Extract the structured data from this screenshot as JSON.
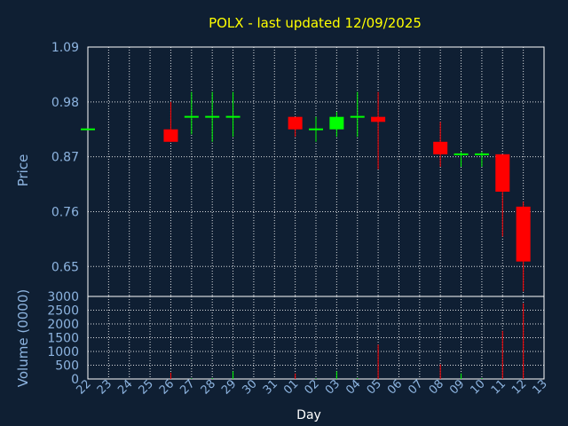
{
  "chart_data": {
    "type": "candlestick",
    "title": "POLX - last updated 12/09/2025",
    "xlabel": "Day",
    "colors": {
      "up": "#00ff00",
      "down": "#ff0000",
      "background": "#0f1f33",
      "axis_text": "#8db4e0",
      "title": "#ffff00"
    },
    "x_ticks": [
      "22",
      "23",
      "24",
      "25",
      "26",
      "27",
      "28",
      "29",
      "30",
      "31",
      "01",
      "02",
      "03",
      "04",
      "05",
      "06",
      "07",
      "08",
      "09",
      "10",
      "11",
      "12",
      "13"
    ],
    "price": {
      "ylabel": "Price",
      "ylim": [
        0.59,
        1.09
      ],
      "ticks": [
        "1.09",
        "0.98",
        "0.87",
        "0.76",
        "0.65"
      ],
      "tick_values": [
        1.09,
        0.98,
        0.87,
        0.76,
        0.65
      ]
    },
    "volume": {
      "ylabel": "Volume (0000)",
      "ylim": [
        0,
        3000
      ],
      "ticks": [
        "3000",
        "2500",
        "2000",
        "1500",
        "1000",
        "500",
        "0"
      ],
      "tick_values": [
        3000,
        2500,
        2000,
        1500,
        1000,
        500,
        0
      ]
    },
    "candles": [
      {
        "day": "22",
        "open": 0.925,
        "close": 0.925,
        "high": 0.925,
        "low": 0.925,
        "volume": 0
      },
      {
        "day": "26",
        "open": 0.925,
        "close": 0.9,
        "high": 0.98,
        "low": 0.9,
        "volume": 230
      },
      {
        "day": "27",
        "open": 0.95,
        "close": 0.95,
        "high": 1.0,
        "low": 0.915,
        "volume": 20
      },
      {
        "day": "28",
        "open": 0.95,
        "close": 0.95,
        "high": 1.0,
        "low": 0.9,
        "volume": 30
      },
      {
        "day": "29",
        "open": 0.95,
        "close": 0.95,
        "high": 1.0,
        "low": 0.91,
        "volume": 280
      },
      {
        "day": "01",
        "open": 0.95,
        "close": 0.925,
        "high": 0.95,
        "low": 0.91,
        "volume": 200
      },
      {
        "day": "02",
        "open": 0.925,
        "close": 0.925,
        "high": 0.95,
        "low": 0.9,
        "volume": 20
      },
      {
        "day": "03",
        "open": 0.925,
        "close": 0.95,
        "high": 0.96,
        "low": 0.91,
        "volume": 280
      },
      {
        "day": "04",
        "open": 0.95,
        "close": 0.95,
        "high": 1.0,
        "low": 0.91,
        "volume": 30
      },
      {
        "day": "05",
        "open": 0.95,
        "close": 0.94,
        "high": 1.0,
        "low": 0.845,
        "volume": 1250
      },
      {
        "day": "08",
        "open": 0.9,
        "close": 0.875,
        "high": 0.94,
        "low": 0.85,
        "volume": 530
      },
      {
        "day": "09",
        "open": 0.875,
        "close": 0.875,
        "high": 0.88,
        "low": 0.85,
        "volume": 200
      },
      {
        "day": "10",
        "open": 0.875,
        "close": 0.875,
        "high": 0.88,
        "low": 0.85,
        "volume": 30
      },
      {
        "day": "11",
        "open": 0.875,
        "close": 0.8,
        "high": 0.875,
        "low": 0.71,
        "volume": 1750
      },
      {
        "day": "12",
        "open": 0.77,
        "close": 0.66,
        "high": 0.78,
        "low": 0.6,
        "volume": 2750
      }
    ]
  }
}
